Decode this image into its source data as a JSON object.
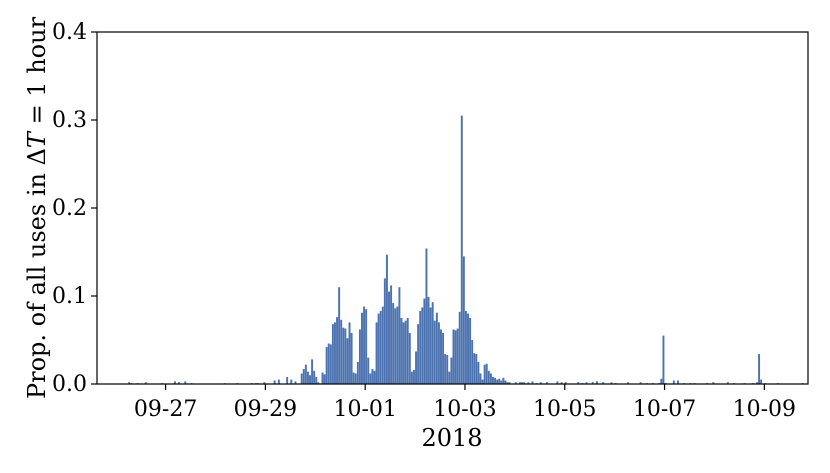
{
  "chart_data": {
    "type": "bar",
    "title": "",
    "xlabel": "2018",
    "ylabel_parts": {
      "prefix": "Prop. of all uses in ",
      "delta": "Δ",
      "T": "T",
      "suffix": " = 1 hour"
    },
    "x_unit": "hours since 2018-09-26 00:00 (1-hour bins)",
    "x_range_hours": [
      -9,
      333
    ],
    "ylim": [
      0,
      0.4
    ],
    "y_ticks": [
      {
        "value": 0.0,
        "label": "0.0"
      },
      {
        "value": 0.1,
        "label": "0.1"
      },
      {
        "value": 0.2,
        "label": "0.2"
      },
      {
        "value": 0.3,
        "label": "0.3"
      },
      {
        "value": 0.4,
        "label": "0.4"
      }
    ],
    "x_ticks": [
      {
        "hour": 24,
        "label": "09-27"
      },
      {
        "hour": 72,
        "label": "09-29"
      },
      {
        "hour": 120,
        "label": "10-01"
      },
      {
        "hour": 168,
        "label": "10-03"
      },
      {
        "hour": 216,
        "label": "10-05"
      },
      {
        "hour": 264,
        "label": "10-07"
      },
      {
        "hour": 312,
        "label": "10-09"
      }
    ],
    "grid": false,
    "legend": "none",
    "bar_color": "#4c72b0",
    "hour_values": [
      [
        6,
        0.002
      ],
      [
        7,
        0.001
      ],
      [
        10,
        0.001
      ],
      [
        14,
        0.002
      ],
      [
        22,
        0.001
      ],
      [
        28,
        0.003
      ],
      [
        30,
        0.002
      ],
      [
        33,
        0.003
      ],
      [
        36,
        0.001
      ],
      [
        52,
        0.001
      ],
      [
        58,
        0.001
      ],
      [
        65,
        0.001
      ],
      [
        67,
        0.001
      ],
      [
        68,
        0.001
      ],
      [
        71,
        0.002
      ],
      [
        76,
        0.004
      ],
      [
        78,
        0.005
      ],
      [
        82,
        0.008
      ],
      [
        84,
        0.005
      ],
      [
        86,
        0.003
      ],
      [
        89,
        0.012
      ],
      [
        90,
        0.017
      ],
      [
        91,
        0.022
      ],
      [
        92,
        0.014
      ],
      [
        93,
        0.01
      ],
      [
        94,
        0.028
      ],
      [
        95,
        0.015
      ],
      [
        96,
        0.008
      ],
      [
        97,
        0.002
      ],
      [
        99,
        0.013
      ],
      [
        100,
        0.011
      ],
      [
        101,
        0.042
      ],
      [
        102,
        0.046
      ],
      [
        103,
        0.045
      ],
      [
        104,
        0.068
      ],
      [
        105,
        0.07
      ],
      [
        106,
        0.076
      ],
      [
        107,
        0.11
      ],
      [
        108,
        0.073
      ],
      [
        109,
        0.064
      ],
      [
        110,
        0.063
      ],
      [
        111,
        0.052
      ],
      [
        112,
        0.07
      ],
      [
        113,
        0.058
      ],
      [
        114,
        0.013
      ],
      [
        115,
        0.012
      ],
      [
        116,
        0.025
      ],
      [
        117,
        0.062
      ],
      [
        118,
        0.081
      ],
      [
        119,
        0.088
      ],
      [
        120,
        0.085
      ],
      [
        121,
        0.03
      ],
      [
        122,
        0.012
      ],
      [
        123,
        0.017
      ],
      [
        124,
        0.015
      ],
      [
        125,
        0.07
      ],
      [
        126,
        0.08
      ],
      [
        127,
        0.083
      ],
      [
        128,
        0.088
      ],
      [
        129,
        0.12
      ],
      [
        130,
        0.147
      ],
      [
        131,
        0.105
      ],
      [
        132,
        0.112
      ],
      [
        133,
        0.092
      ],
      [
        134,
        0.086
      ],
      [
        135,
        0.088
      ],
      [
        136,
        0.11
      ],
      [
        137,
        0.075
      ],
      [
        138,
        0.07
      ],
      [
        139,
        0.072
      ],
      [
        140,
        0.075
      ],
      [
        141,
        0.058
      ],
      [
        142,
        0.014
      ],
      [
        143,
        0.016
      ],
      [
        144,
        0.037
      ],
      [
        145,
        0.068
      ],
      [
        146,
        0.083
      ],
      [
        147,
        0.087
      ],
      [
        148,
        0.097
      ],
      [
        149,
        0.154
      ],
      [
        150,
        0.099
      ],
      [
        151,
        0.087
      ],
      [
        152,
        0.093
      ],
      [
        153,
        0.072
      ],
      [
        154,
        0.081
      ],
      [
        155,
        0.07
      ],
      [
        156,
        0.062
      ],
      [
        157,
        0.058
      ],
      [
        158,
        0.034
      ],
      [
        159,
        0.033
      ],
      [
        160,
        0.014
      ],
      [
        161,
        0.03
      ],
      [
        162,
        0.062
      ],
      [
        163,
        0.061
      ],
      [
        164,
        0.063
      ],
      [
        165,
        0.082
      ],
      [
        166,
        0.305
      ],
      [
        167,
        0.145
      ],
      [
        168,
        0.083
      ],
      [
        169,
        0.08
      ],
      [
        170,
        0.075
      ],
      [
        171,
        0.05
      ],
      [
        172,
        0.035
      ],
      [
        173,
        0.034
      ],
      [
        174,
        0.025
      ],
      [
        175,
        0.012
      ],
      [
        176,
        0.005
      ],
      [
        177,
        0.022
      ],
      [
        178,
        0.023
      ],
      [
        179,
        0.015
      ],
      [
        180,
        0.012
      ],
      [
        181,
        0.008
      ],
      [
        182,
        0.007
      ],
      [
        183,
        0.005
      ],
      [
        184,
        0.006
      ],
      [
        185,
        0.004
      ],
      [
        186,
        0.007
      ],
      [
        187,
        0.004
      ],
      [
        188,
        0.002
      ],
      [
        189,
        0.002
      ],
      [
        192,
        0.002
      ],
      [
        194,
        0.002
      ],
      [
        195,
        0.002
      ],
      [
        196,
        0.002
      ],
      [
        198,
        0.002
      ],
      [
        200,
        0.003
      ],
      [
        202,
        0.001
      ],
      [
        204,
        0.002
      ],
      [
        207,
        0.002
      ],
      [
        212,
        0.003
      ],
      [
        214,
        0.002
      ],
      [
        216,
        0.002
      ],
      [
        222,
        0.002
      ],
      [
        224,
        0.001
      ],
      [
        226,
        0.002
      ],
      [
        229,
        0.002
      ],
      [
        231,
        0.003
      ],
      [
        234,
        0.002
      ],
      [
        238,
        0.002
      ],
      [
        240,
        0.001
      ],
      [
        246,
        0.002
      ],
      [
        252,
        0.002
      ],
      [
        255,
        0.001
      ],
      [
        258,
        0.001
      ],
      [
        261,
        0.001
      ],
      [
        262,
        0.006
      ],
      [
        263,
        0.055
      ],
      [
        264,
        0.001
      ],
      [
        268,
        0.004
      ],
      [
        270,
        0.004
      ],
      [
        273,
        0.001
      ],
      [
        276,
        0.001
      ],
      [
        278,
        0.001
      ],
      [
        284,
        0.001
      ],
      [
        287,
        0.002
      ],
      [
        294,
        0.002
      ],
      [
        297,
        0.001
      ],
      [
        302,
        0.001
      ],
      [
        306,
        0.001
      ],
      [
        308,
        0.002
      ],
      [
        309,
        0.034
      ],
      [
        310,
        0.005
      ],
      [
        312,
        0.001
      ],
      [
        318,
        0.001
      ],
      [
        330,
        0.001
      ]
    ]
  }
}
